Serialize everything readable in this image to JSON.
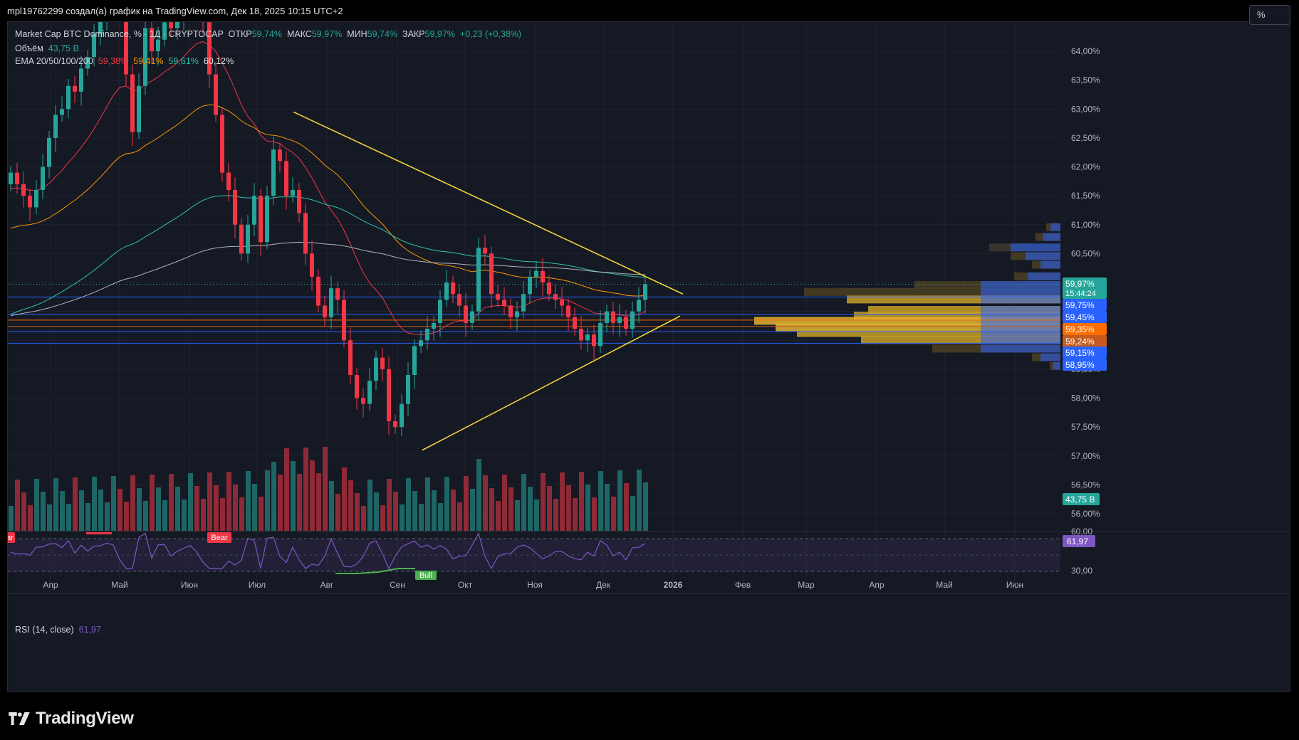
{
  "header": {
    "attribution": "mpl19762299 создал(а) график на TradingView.com, Дек 18, 2025 10:15 UTC+2"
  },
  "legend": {
    "symbol": "Market Cap BTC Dominance, %",
    "interval": "1Д",
    "exchange": "CRYPTOCAP",
    "open_label": "ОТКР",
    "open_value": "59,74%",
    "high_label": "МАКС",
    "high_value": "59,97%",
    "low_label": "МИН",
    "low_value": "59,74%",
    "close_label": "ЗАКР",
    "close_value": "59,97%",
    "change": "+0,23 (+0,38%)",
    "volume_label": "Объём",
    "volume_value": "43,75 B",
    "ema_label": "EMA 20/50/100/200",
    "ema_values": [
      "59,38%",
      "59,41%",
      "59,61%",
      "60,12%"
    ]
  },
  "rsi": {
    "label": "RSI (14, close)",
    "value": "61,97",
    "bear_label": "Bear",
    "bull_label": "Bull",
    "edge_label": "ar"
  },
  "toolbar": {
    "percent_button": "%"
  },
  "branding": {
    "logo_text": "TradingView",
    "logo_icon": "tradingview-logo-icon"
  },
  "colors": {
    "up": "#26a69a",
    "down": "#f23645",
    "ema20": "#f23645",
    "ema50": "#ff9800",
    "ema100": "#2ec5a8",
    "ema200": "#b2b5be",
    "trendline": "#f0d43a",
    "rsi": "#7e57c2",
    "level": "#2962ff",
    "level_orange": "#ff6d00"
  },
  "chart_data": {
    "type": "candlestick",
    "title": "Market Cap BTC Dominance, % · 1Д · CRYPTOCAP",
    "y_axis": {
      "unit": "%",
      "ylim": [
        55.75,
        64.5
      ],
      "ticks": [
        "64,00%",
        "63,50%",
        "63,00%",
        "62,50%",
        "62,00%",
        "61,50%",
        "61,00%",
        "60,50%",
        "60,00%",
        "59,50%",
        "59,00%",
        "58,50%",
        "58,00%",
        "57,50%",
        "57,00%",
        "56,50%",
        "56,00%"
      ]
    },
    "x_axis": {
      "ticks": [
        "Апр",
        "Май",
        "Июн",
        "Июл",
        "Авг",
        "Сен",
        "Окт",
        "Ноя",
        "Дек",
        "2026",
        "Фев",
        "Мар",
        "Апр",
        "Май",
        "Июн"
      ]
    },
    "price_badges": [
      {
        "label": "59,97%",
        "sub": "15:44:24",
        "type": "last",
        "value": 59.97
      },
      {
        "label": "59,75%",
        "type": "level",
        "value": 59.75
      },
      {
        "label": "59,45%",
        "type": "level",
        "value": 59.45
      },
      {
        "label": "59,35%",
        "type": "ema",
        "value": 59.35
      },
      {
        "label": "59,24%",
        "type": "ema",
        "value": 59.24
      },
      {
        "label": "59,15%",
        "type": "level",
        "value": 59.15
      },
      {
        "label": "58,95%",
        "type": "level",
        "value": 58.95
      }
    ],
    "volume_badge": "43,75 B",
    "horizontal_levels": [
      59.75,
      59.45,
      59.15,
      58.95
    ],
    "trendlines": [
      {
        "name": "descending",
        "from": [
          "Июл",
          62.95
        ],
        "to": [
          "Дек",
          59.75
        ]
      },
      {
        "name": "ascending",
        "from": [
          "Сен",
          57.1
        ],
        "to": [
          "Дек",
          59.4
        ]
      }
    ],
    "close_series": [
      61.9,
      61.7,
      61.5,
      61.3,
      61.6,
      62.0,
      62.5,
      62.9,
      63.0,
      63.4,
      63.3,
      63.7,
      63.9,
      64.3,
      64.6,
      64.9,
      65.1,
      64.7,
      63.6,
      62.6,
      63.4,
      64.4,
      64.0,
      64.2,
      64.5,
      64.4,
      64.6,
      64.9,
      65.2,
      65.1,
      64.5,
      63.6,
      62.9,
      61.9,
      61.6,
      61.0,
      60.5,
      61.0,
      61.5,
      60.7,
      61.5,
      62.3,
      62.1,
      61.5,
      61.6,
      61.2,
      60.5,
      60.1,
      59.6,
      59.4,
      59.9,
      59.7,
      59.0,
      58.4,
      58.0,
      57.9,
      58.3,
      58.7,
      58.5,
      57.6,
      57.5,
      57.9,
      58.4,
      58.9,
      59.0,
      59.2,
      59.3,
      59.7,
      60.0,
      59.8,
      59.6,
      59.3,
      59.5,
      60.6,
      60.5,
      59.8,
      59.7,
      59.6,
      59.4,
      59.5,
      59.8,
      60.1,
      60.2,
      60.0,
      59.8,
      59.7,
      59.6,
      59.4,
      59.2,
      59.0,
      59.1,
      58.9,
      59.3,
      59.5,
      59.3,
      59.4,
      59.2,
      59.5,
      59.7,
      59.97
    ],
    "volume_profile": "visible-range bars drawn at right edge (blue/yellow)",
    "rsi": {
      "value": 61.97,
      "ticks": [
        "60,00",
        "30,00"
      ]
    }
  }
}
